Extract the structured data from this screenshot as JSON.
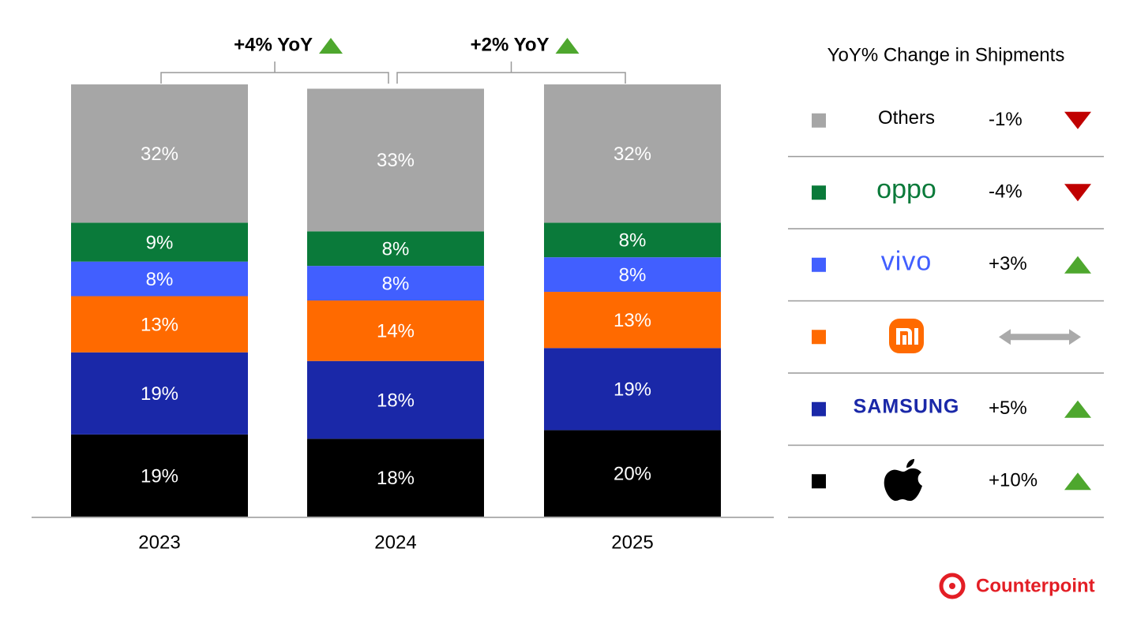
{
  "chart_data": {
    "type": "stacked_bar",
    "categories": [
      "2023",
      "2024",
      "2025"
    ],
    "ylim": [
      0,
      100
    ],
    "series": [
      {
        "color": "#000000",
        "values": [
          19,
          18,
          20
        ],
        "value_labels": [
          "19%",
          "18%",
          "20%"
        ],
        "change": 10,
        "change_label": "+10%"
      },
      {
        "name": "SAMSUNG",
        "color": "#1a28a8",
        "values": [
          19,
          18,
          19
        ],
        "value_labels": [
          "19%",
          "18%",
          "19%"
        ],
        "change": 5,
        "change_label": "+5%"
      },
      {
        "color": "#ff6a00",
        "values": [
          13,
          14,
          13
        ],
        "value_labels": [
          "13%",
          "14%",
          "13%"
        ],
        "change": null
      },
      {
        "name": "vivo",
        "color": "#415fff",
        "values": [
          8,
          8,
          8
        ],
        "value_labels": [
          "8%",
          "8%",
          "8%"
        ],
        "change": 3,
        "change_label": "+3%"
      },
      {
        "name": "oppo",
        "color": "#0a7a3a",
        "values": [
          9,
          8,
          8
        ],
        "value_labels": [
          "9%",
          "8%",
          "8%"
        ],
        "change": -4,
        "change_label": "-4%"
      },
      {
        "name": "Others",
        "color": "#a6a6a6",
        "values": [
          32,
          33,
          32
        ],
        "value_labels": [
          "32%",
          "33%",
          "32%"
        ],
        "change": -1,
        "change_label": "-1%"
      }
    ],
    "annotations": [
      "+4% YoY",
      "+2% YoY"
    ],
    "legend_title": "YoY% Change in Shipments",
    "source": "Counterpoint"
  }
}
